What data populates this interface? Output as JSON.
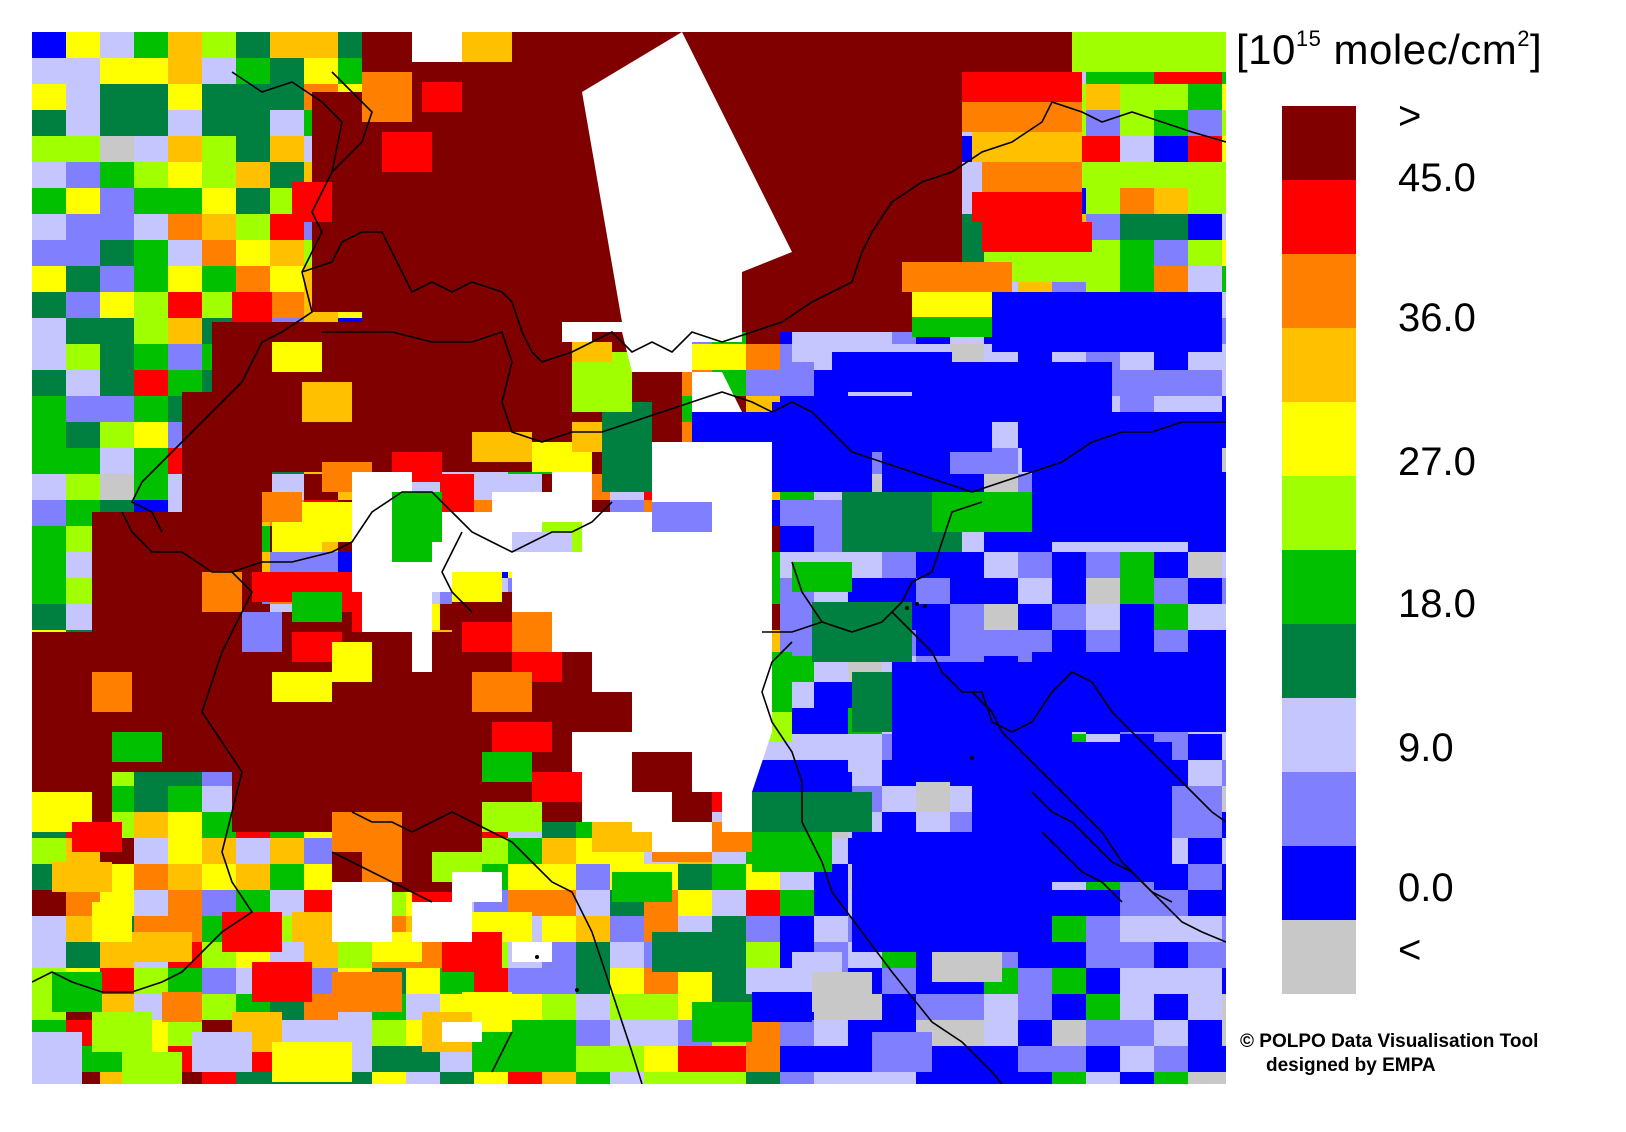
{
  "unit": {
    "prefix": "[10",
    "exponent": "15",
    "suffix": " molec/cm",
    "area_exp": "2",
    "close": "]"
  },
  "colorbar": {
    "segments": [
      {
        "color": "#800000"
      },
      {
        "color": "#ff0000"
      },
      {
        "color": "#ff8000"
      },
      {
        "color": "#ffc000"
      },
      {
        "color": "#ffff00"
      },
      {
        "color": "#a0ff00"
      },
      {
        "color": "#00c000"
      },
      {
        "color": "#008040"
      },
      {
        "color": "#c6c6ff"
      },
      {
        "color": "#8080ff"
      },
      {
        "color": "#0000ff"
      },
      {
        "color": "#c8c8c8"
      }
    ],
    "labels": [
      ">",
      "45.0",
      "36.0",
      "27.0",
      "18.0",
      "9.0",
      "0.0",
      "<"
    ]
  },
  "credit": {
    "line1": "© POLPO Data Visualisation Tool",
    "line2": "designed by EMPA"
  },
  "map": {
    "background": "#c6c6ff",
    "no_data_color": "#ffffff",
    "border_color": "#000000"
  }
}
